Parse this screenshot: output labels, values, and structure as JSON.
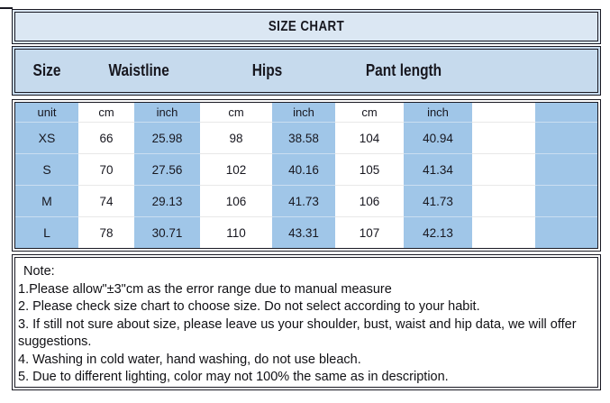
{
  "title": "SIZE CHART",
  "header": {
    "size": "Size",
    "waistline": "Waistline",
    "hips": "Hips",
    "pant_length": "Pant length"
  },
  "unit_row": {
    "label": "unit",
    "waist_cm": "cm",
    "waist_inch": "inch",
    "hips_cm": "cm",
    "hips_inch": "inch",
    "length_cm": "cm",
    "length_inch": "inch"
  },
  "rows": [
    {
      "size": "XS",
      "waist_cm": "66",
      "waist_inch": "25.98",
      "hips_cm": "98",
      "hips_inch": "38.58",
      "length_cm": "104",
      "length_inch": "40.94"
    },
    {
      "size": "S",
      "waist_cm": "70",
      "waist_inch": "27.56",
      "hips_cm": "102",
      "hips_inch": "40.16",
      "length_cm": "105",
      "length_inch": "41.34"
    },
    {
      "size": "M",
      "waist_cm": "74",
      "waist_inch": "29.13",
      "hips_cm": "106",
      "hips_inch": "41.73",
      "length_cm": "106",
      "length_inch": "41.73"
    },
    {
      "size": "L",
      "waist_cm": "78",
      "waist_inch": "30.71",
      "hips_cm": "110",
      "hips_inch": "43.31",
      "length_cm": "107",
      "length_inch": "42.13"
    }
  ],
  "notes": {
    "label": "Note:",
    "lines": [
      "1.Please allow\"±3\"cm as the error range due to manual measure",
      "2. Please check size chart to choose size. Do not select according to your habit.",
      "3. If still not sure about size, please leave us your shoulder, bust, waist and hip data, we will offer",
      "suggestions.",
      "4. Washing in cold water, hand washing, do not use bleach.",
      "5. Due to different lighting, color may not 100% the same as in description."
    ]
  },
  "colors": {
    "title_bg": "#dbe7f3",
    "header_bg": "#c6daed",
    "highlight_blue": "#a0c6e8",
    "border": "#1a1a24"
  }
}
